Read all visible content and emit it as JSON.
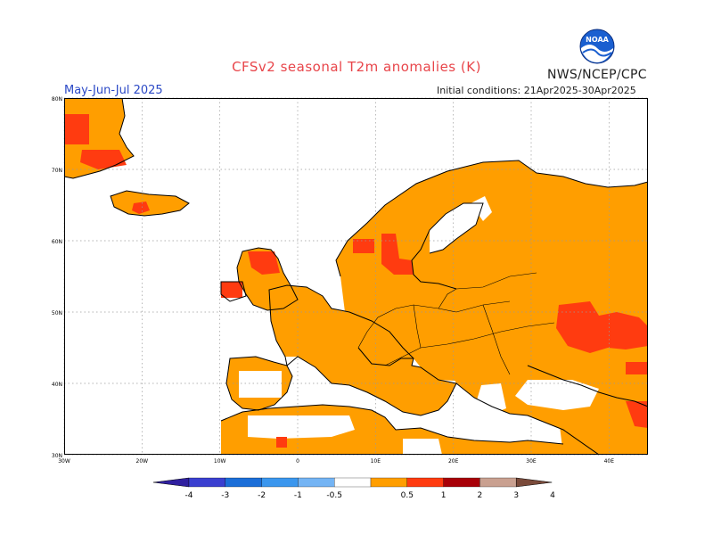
{
  "header": {
    "title": "CFSv2 seasonal T2m anomalies (K)",
    "agency": "NWS/NCEP/CPC",
    "logo_text": "NOAA",
    "season": "May-Jun-Jul 2025",
    "initial_conditions": "Initial conditions: 21Apr2025-30Apr2025"
  },
  "map": {
    "lat_labels": [
      "80N",
      "70N",
      "60N",
      "50N",
      "40N",
      "30N"
    ],
    "lon_labels": [
      "30W",
      "20W",
      "10W",
      "0",
      "10E",
      "20E",
      "30E",
      "40E"
    ],
    "lon_range": [
      -30,
      45
    ],
    "lat_range": [
      30,
      80
    ],
    "land_color": "#ffffff",
    "coastline_color": "#000000",
    "grid_color": "#9a9a9a"
  },
  "colorbar": {
    "labels": [
      "-4",
      "-3",
      "-2",
      "-1",
      "-0.5",
      "0.5",
      "1",
      "2",
      "3",
      "4"
    ],
    "colors": [
      "#3020a0",
      "#3a3fd0",
      "#1b6ed8",
      "#3a96ee",
      "#74b4f4",
      "#ffffff",
      "#ff9e00",
      "#ff3b10",
      "#a80008",
      "#c9a090",
      "#7a4a3a"
    ]
  },
  "anomaly_colors": {
    "anom_0_5_to_1": "#ff9e00",
    "anom_1_to_2": "#ff3b10"
  }
}
